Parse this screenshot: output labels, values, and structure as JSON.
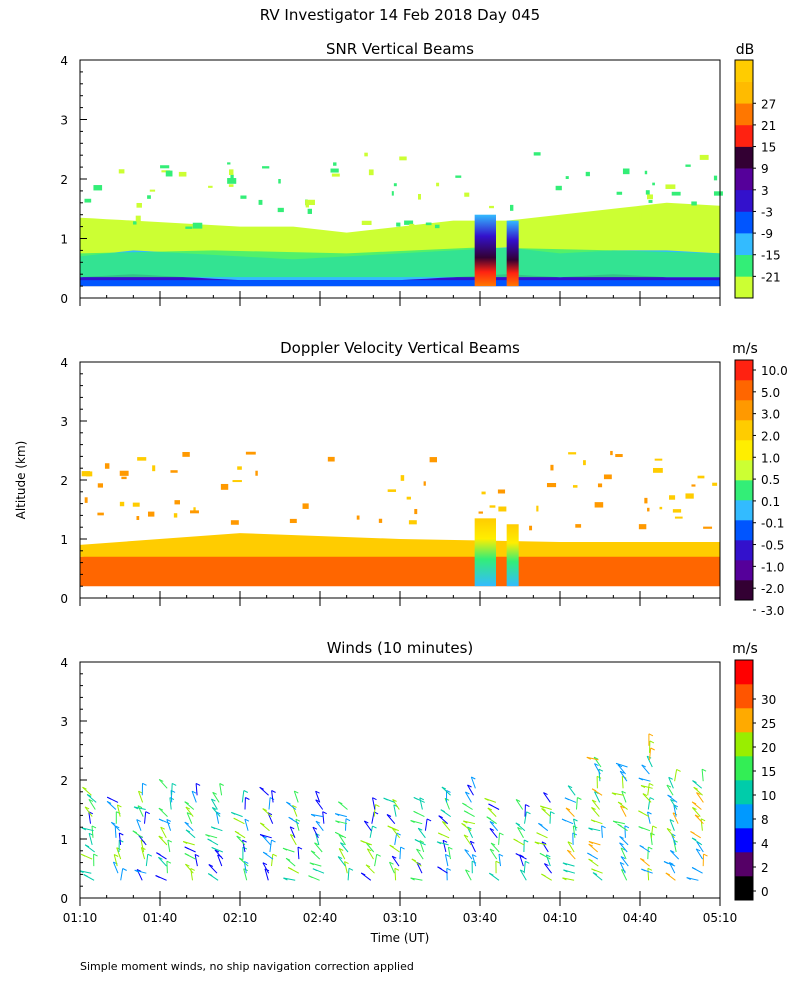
{
  "title": "RV Investigator  14 Feb 2018 Day 045",
  "ylabel": "Altitude (km)",
  "xlabel": "Time (UT)",
  "footnote": "Simple moment winds, no ship navigation correction applied",
  "time_ticks": [
    "01:10",
    "01:40",
    "02:10",
    "02:40",
    "03:10",
    "03:40",
    "04:10",
    "04:40",
    "05:10"
  ],
  "altitude_ticks": [
    "0",
    "1",
    "2",
    "3",
    "4"
  ],
  "chart_data": [
    {
      "type": "heatmap",
      "title": "SNR Vertical Beams",
      "units": "dB",
      "x_range": [
        "01:10",
        "05:10"
      ],
      "ylim": [
        0,
        4
      ],
      "colorbar": {
        "labels": [
          "-21",
          "-15",
          "-9",
          "-3",
          "3",
          "9",
          "15",
          "21",
          "27"
        ],
        "colors": [
          "#ccff33",
          "#33ee77",
          "#33bbff",
          "#0055ff",
          "#3311cc",
          "#55009a",
          "#330033",
          "#ff2211",
          "#ff7700",
          "#ffbb00",
          "#ffcc00"
        ]
      },
      "layers": [
        {
          "name": "lower",
          "x_minutes": [
            0,
            20,
            40,
            60,
            80,
            100,
            120,
            140,
            160,
            180,
            200,
            220,
            240
          ],
          "top_km": [
            0.35,
            0.4,
            0.35,
            0.3,
            0.3,
            0.3,
            0.3,
            0.35,
            0.4,
            0.35,
            0.4,
            0.35,
            0.35
          ],
          "color": "#3311cc"
        },
        {
          "name": "mid",
          "x_minutes": [
            0,
            20,
            40,
            60,
            80,
            100,
            120,
            140,
            160,
            180,
            200,
            220,
            240
          ],
          "top_km": [
            0.7,
            0.8,
            0.75,
            0.7,
            0.65,
            0.7,
            0.75,
            0.8,
            0.85,
            0.75,
            0.8,
            0.8,
            0.75
          ],
          "color": "#33bbff"
        },
        {
          "name": "upper",
          "x_minutes": [
            0,
            20,
            40,
            60,
            80,
            100,
            120,
            140,
            160,
            180,
            200,
            220,
            240
          ],
          "top_km": [
            1.35,
            1.3,
            1.25,
            1.2,
            1.2,
            1.1,
            1.2,
            1.3,
            1.3,
            1.4,
            1.5,
            1.6,
            1.55
          ],
          "color": "#ccff33"
        }
      ],
      "convection": {
        "x_minutes": [
          148,
          156
        ],
        "top_km": 1.4
      }
    },
    {
      "type": "heatmap",
      "title": "Doppler Velocity Vertical Beams",
      "units": "m/s",
      "x_range": [
        "01:10",
        "05:10"
      ],
      "ylim": [
        0,
        4
      ],
      "colorbar": {
        "labels": [
          "10.0",
          "5.0",
          "3.0",
          "2.0",
          "1.0",
          "0.5",
          "0.1",
          "-0.1",
          "-0.5",
          "-1.0",
          "-2.0",
          "-3.0"
        ],
        "colors": [
          "#330033",
          "#55009a",
          "#3311cc",
          "#0055ff",
          "#33bbff",
          "#33ee77",
          "#ccff33",
          "#ffee00",
          "#ffcc00",
          "#ff9900",
          "#ff6600",
          "#ff2211"
        ]
      },
      "layers": [
        {
          "name": "downward",
          "x_minutes": [
            0,
            20,
            40,
            60,
            80,
            100,
            120,
            140,
            160,
            180,
            200,
            220,
            240
          ],
          "top_km": [
            0.7,
            0.75,
            0.85,
            0.85,
            0.85,
            0.9,
            0.85,
            0.9,
            0.9,
            0.85,
            0.8,
            0.75,
            0.75
          ],
          "color": "#ff6600"
        }
      ],
      "convection": {
        "x_minutes": [
          148,
          156
        ],
        "top_km": 1.35
      }
    },
    {
      "type": "scatter",
      "title": "Winds (10 minutes)",
      "units": "m/s",
      "x_range": [
        "01:10",
        "05:10"
      ],
      "ylim": [
        0,
        4
      ],
      "colorbar": {
        "labels": [
          "0",
          "2",
          "4",
          "8",
          "10",
          "15",
          "20",
          "25",
          "30"
        ],
        "colors": [
          "#000000",
          "#550066",
          "#0000ff",
          "#0099ff",
          "#00ccaa",
          "#33ee55",
          "#99ee00",
          "#ffaa00",
          "#ff5500",
          "#ff0000"
        ]
      },
      "profiles_every_minutes": 10,
      "max_altitude_km": [
        1.8,
        1.7,
        1.8,
        1.9,
        1.8,
        1.8,
        1.7,
        1.8,
        1.7,
        1.7,
        1.6,
        1.6,
        1.7,
        1.7,
        1.8,
        1.9,
        1.7,
        1.6,
        1.7,
        1.8,
        2.4,
        2.3,
        2.6,
        2.1,
        2.0
      ]
    }
  ]
}
